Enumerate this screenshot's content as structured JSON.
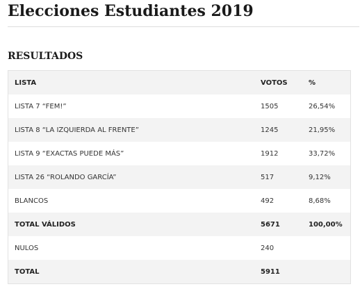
{
  "header": {
    "title": "Elecciones Estudiantes 2019"
  },
  "section": {
    "title": "RESULTADOS"
  },
  "table": {
    "columns": [
      "LISTA",
      "VOTOS",
      "%"
    ],
    "rows": [
      {
        "lista": "LISTA 7 “FEM!”",
        "votos": "1505",
        "pct": "26,54%"
      },
      {
        "lista": "LISTA 8 “LA IZQUIERDA AL FRENTE”",
        "votos": "1245",
        "pct": "21,95%"
      },
      {
        "lista": "LISTA 9 “EXACTAS PUEDE MÁS”",
        "votos": "1912",
        "pct": "33,72%"
      },
      {
        "lista": "LISTA 26 “ROLANDO GARCÍA”",
        "votos": "517",
        "pct": "9,12%"
      },
      {
        "lista": "BLANCOS",
        "votos": "492",
        "pct": "8,68%"
      },
      {
        "lista": "TOTAL VÁLIDOS",
        "votos": "5671",
        "pct": "100,00%",
        "bold": true
      },
      {
        "lista": "NULOS",
        "votos": "240"
      },
      {
        "lista": "TOTAL",
        "votos": "5911",
        "bold": true
      }
    ]
  }
}
